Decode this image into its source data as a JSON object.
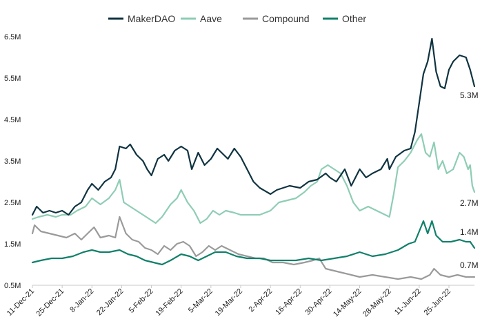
{
  "chart_data": {
    "type": "line",
    "title": "",
    "xlabel": "",
    "ylabel": "",
    "ylim": [
      0.5,
      6.5
    ],
    "y_ticks": [
      {
        "value": 0.5,
        "label": "0.5M"
      },
      {
        "value": 1.5,
        "label": "1.5M"
      },
      {
        "value": 2.5,
        "label": "2.5M"
      },
      {
        "value": 3.5,
        "label": "3.5M"
      },
      {
        "value": 4.5,
        "label": "4.5M"
      },
      {
        "value": 5.5,
        "label": "5.5M"
      },
      {
        "value": 6.5,
        "label": "6.5M"
      }
    ],
    "x_range": [
      "2021-12-11",
      "2022-07-07"
    ],
    "x_ticks": [
      {
        "date": "2021-12-11",
        "label": "11-Dec-21"
      },
      {
        "date": "2021-12-25",
        "label": "25-Dec-21"
      },
      {
        "date": "2022-01-08",
        "label": "8-Jan-22"
      },
      {
        "date": "2022-01-22",
        "label": "22-Jan-22"
      },
      {
        "date": "2022-02-05",
        "label": "5-Feb-22"
      },
      {
        "date": "2022-02-19",
        "label": "19-Feb-22"
      },
      {
        "date": "2022-03-05",
        "label": "5-Mar-22"
      },
      {
        "date": "2022-03-19",
        "label": "19-Mar-22"
      },
      {
        "date": "2022-04-02",
        "label": "2-Apr-22"
      },
      {
        "date": "2022-04-16",
        "label": "16-Apr-22"
      },
      {
        "date": "2022-04-30",
        "label": "30-Apr-22"
      },
      {
        "date": "2022-05-14",
        "label": "14-May-22"
      },
      {
        "date": "2022-05-28",
        "label": "28-May-22"
      },
      {
        "date": "2022-06-11",
        "label": "11-Jun-22"
      },
      {
        "date": "2022-06-25",
        "label": "25-Jun-22"
      }
    ],
    "grid": false,
    "legend_position": "top-center",
    "series": [
      {
        "name": "MakerDAO",
        "color": "#0f3340",
        "end_label": "5.3M",
        "points": [
          [
            "2021-12-11",
            2.2
          ],
          [
            "2021-12-13",
            2.4
          ],
          [
            "2021-12-16",
            2.25
          ],
          [
            "2021-12-19",
            2.3
          ],
          [
            "2021-12-22",
            2.25
          ],
          [
            "2021-12-25",
            2.3
          ],
          [
            "2021-12-28",
            2.2
          ],
          [
            "2021-12-31",
            2.4
          ],
          [
            "2022-01-03",
            2.5
          ],
          [
            "2022-01-06",
            2.8
          ],
          [
            "2022-01-08",
            2.95
          ],
          [
            "2022-01-11",
            2.8
          ],
          [
            "2022-01-14",
            3.0
          ],
          [
            "2022-01-17",
            3.1
          ],
          [
            "2022-01-19",
            3.3
          ],
          [
            "2022-01-21",
            3.85
          ],
          [
            "2022-01-24",
            3.8
          ],
          [
            "2022-01-26",
            3.9
          ],
          [
            "2022-01-29",
            3.65
          ],
          [
            "2022-02-01",
            3.5
          ],
          [
            "2022-02-03",
            3.3
          ],
          [
            "2022-02-05",
            3.15
          ],
          [
            "2022-02-08",
            3.55
          ],
          [
            "2022-02-11",
            3.65
          ],
          [
            "2022-02-13",
            3.5
          ],
          [
            "2022-02-16",
            3.75
          ],
          [
            "2022-02-19",
            3.85
          ],
          [
            "2022-02-22",
            3.75
          ],
          [
            "2022-02-24",
            3.3
          ],
          [
            "2022-02-27",
            3.7
          ],
          [
            "2022-03-02",
            3.4
          ],
          [
            "2022-03-05",
            3.55
          ],
          [
            "2022-03-08",
            3.8
          ],
          [
            "2022-03-10",
            3.7
          ],
          [
            "2022-03-13",
            3.55
          ],
          [
            "2022-03-16",
            3.8
          ],
          [
            "2022-03-19",
            3.6
          ],
          [
            "2022-03-22",
            3.3
          ],
          [
            "2022-03-25",
            3.0
          ],
          [
            "2022-03-28",
            2.85
          ],
          [
            "2022-04-02",
            2.7
          ],
          [
            "2022-04-05",
            2.8
          ],
          [
            "2022-04-08",
            2.85
          ],
          [
            "2022-04-11",
            2.9
          ],
          [
            "2022-04-16",
            2.85
          ],
          [
            "2022-04-20",
            3.0
          ],
          [
            "2022-04-24",
            3.05
          ],
          [
            "2022-04-28",
            3.2
          ],
          [
            "2022-04-30",
            3.1
          ],
          [
            "2022-05-03",
            3.0
          ],
          [
            "2022-05-07",
            3.3
          ],
          [
            "2022-05-10",
            2.9
          ],
          [
            "2022-05-14",
            3.3
          ],
          [
            "2022-05-17",
            3.1
          ],
          [
            "2022-05-20",
            3.2
          ],
          [
            "2022-05-24",
            3.3
          ],
          [
            "2022-05-27",
            3.55
          ],
          [
            "2022-05-28",
            3.3
          ],
          [
            "2022-05-31",
            3.6
          ],
          [
            "2022-06-04",
            3.75
          ],
          [
            "2022-06-07",
            3.8
          ],
          [
            "2022-06-09",
            4.2
          ],
          [
            "2022-06-11",
            4.9
          ],
          [
            "2022-06-13",
            5.6
          ],
          [
            "2022-06-15",
            5.9
          ],
          [
            "2022-06-17",
            6.45
          ],
          [
            "2022-06-19",
            5.65
          ],
          [
            "2022-06-21",
            5.3
          ],
          [
            "2022-06-23",
            5.25
          ],
          [
            "2022-06-25",
            5.7
          ],
          [
            "2022-06-27",
            5.9
          ],
          [
            "2022-06-30",
            6.05
          ],
          [
            "2022-07-03",
            6.0
          ],
          [
            "2022-07-05",
            5.7
          ],
          [
            "2022-07-07",
            5.3
          ]
        ]
      },
      {
        "name": "Aave",
        "color": "#8ecdb4",
        "end_label": "2.7M",
        "points": [
          [
            "2021-12-11",
            2.1
          ],
          [
            "2021-12-14",
            2.15
          ],
          [
            "2021-12-18",
            2.2
          ],
          [
            "2021-12-22",
            2.15
          ],
          [
            "2021-12-25",
            2.2
          ],
          [
            "2021-12-29",
            2.2
          ],
          [
            "2022-01-01",
            2.3
          ],
          [
            "2022-01-05",
            2.4
          ],
          [
            "2022-01-08",
            2.6
          ],
          [
            "2022-01-12",
            2.45
          ],
          [
            "2022-01-16",
            2.6
          ],
          [
            "2022-01-19",
            2.8
          ],
          [
            "2022-01-21",
            3.05
          ],
          [
            "2022-01-23",
            2.5
          ],
          [
            "2022-01-26",
            2.4
          ],
          [
            "2022-01-29",
            2.3
          ],
          [
            "2022-02-01",
            2.2
          ],
          [
            "2022-02-04",
            2.1
          ],
          [
            "2022-02-07",
            2.0
          ],
          [
            "2022-02-10",
            2.15
          ],
          [
            "2022-02-14",
            2.45
          ],
          [
            "2022-02-17",
            2.6
          ],
          [
            "2022-02-19",
            2.8
          ],
          [
            "2022-02-22",
            2.5
          ],
          [
            "2022-02-25",
            2.3
          ],
          [
            "2022-02-28",
            2.0
          ],
          [
            "2022-03-03",
            2.1
          ],
          [
            "2022-03-06",
            2.3
          ],
          [
            "2022-03-09",
            2.2
          ],
          [
            "2022-03-12",
            2.3
          ],
          [
            "2022-03-16",
            2.25
          ],
          [
            "2022-03-19",
            2.2
          ],
          [
            "2022-03-24",
            2.2
          ],
          [
            "2022-03-28",
            2.2
          ],
          [
            "2022-04-02",
            2.3
          ],
          [
            "2022-04-06",
            2.5
          ],
          [
            "2022-04-10",
            2.55
          ],
          [
            "2022-04-14",
            2.6
          ],
          [
            "2022-04-18",
            2.75
          ],
          [
            "2022-04-21",
            2.9
          ],
          [
            "2022-04-24",
            3.0
          ],
          [
            "2022-04-26",
            3.3
          ],
          [
            "2022-04-29",
            3.4
          ],
          [
            "2022-05-02",
            3.3
          ],
          [
            "2022-05-05",
            3.2
          ],
          [
            "2022-05-08",
            2.9
          ],
          [
            "2022-05-11",
            2.5
          ],
          [
            "2022-05-14",
            2.3
          ],
          [
            "2022-05-18",
            2.4
          ],
          [
            "2022-05-22",
            2.3
          ],
          [
            "2022-05-26",
            2.2
          ],
          [
            "2022-05-28",
            2.15
          ],
          [
            "2022-05-30",
            2.7
          ],
          [
            "2022-06-01",
            3.35
          ],
          [
            "2022-06-04",
            3.5
          ],
          [
            "2022-06-07",
            3.7
          ],
          [
            "2022-06-10",
            4.0
          ],
          [
            "2022-06-12",
            4.15
          ],
          [
            "2022-06-14",
            3.7
          ],
          [
            "2022-06-16",
            3.6
          ],
          [
            "2022-06-18",
            3.95
          ],
          [
            "2022-06-20",
            3.3
          ],
          [
            "2022-06-22",
            3.5
          ],
          [
            "2022-06-24",
            3.2
          ],
          [
            "2022-06-27",
            3.3
          ],
          [
            "2022-06-30",
            3.7
          ],
          [
            "2022-07-02",
            3.6
          ],
          [
            "2022-07-04",
            3.3
          ],
          [
            "2022-07-05",
            3.4
          ],
          [
            "2022-07-06",
            2.9
          ],
          [
            "2022-07-07",
            2.75
          ]
        ]
      },
      {
        "name": "Compound",
        "color": "#9a9a9a",
        "end_label": "0.7M",
        "points": [
          [
            "2021-12-11",
            1.75
          ],
          [
            "2021-12-12",
            1.95
          ],
          [
            "2021-12-15",
            1.8
          ],
          [
            "2021-12-19",
            1.75
          ],
          [
            "2021-12-23",
            1.7
          ],
          [
            "2021-12-27",
            1.65
          ],
          [
            "2021-12-31",
            1.75
          ],
          [
            "2022-01-03",
            1.6
          ],
          [
            "2022-01-06",
            1.75
          ],
          [
            "2022-01-09",
            1.9
          ],
          [
            "2022-01-12",
            1.65
          ],
          [
            "2022-01-16",
            1.7
          ],
          [
            "2022-01-19",
            1.65
          ],
          [
            "2022-01-21",
            2.15
          ],
          [
            "2022-01-24",
            1.75
          ],
          [
            "2022-01-27",
            1.6
          ],
          [
            "2022-01-30",
            1.55
          ],
          [
            "2022-02-02",
            1.4
          ],
          [
            "2022-02-05",
            1.35
          ],
          [
            "2022-02-08",
            1.25
          ],
          [
            "2022-02-11",
            1.45
          ],
          [
            "2022-02-14",
            1.35
          ],
          [
            "2022-02-17",
            1.5
          ],
          [
            "2022-02-20",
            1.55
          ],
          [
            "2022-02-23",
            1.45
          ],
          [
            "2022-02-26",
            1.2
          ],
          [
            "2022-03-01",
            1.3
          ],
          [
            "2022-03-04",
            1.45
          ],
          [
            "2022-03-07",
            1.35
          ],
          [
            "2022-03-10",
            1.45
          ],
          [
            "2022-03-14",
            1.35
          ],
          [
            "2022-03-18",
            1.25
          ],
          [
            "2022-03-22",
            1.2
          ],
          [
            "2022-03-26",
            1.15
          ],
          [
            "2022-03-30",
            1.15
          ],
          [
            "2022-04-03",
            1.05
          ],
          [
            "2022-04-08",
            1.05
          ],
          [
            "2022-04-13",
            1.0
          ],
          [
            "2022-04-18",
            1.05
          ],
          [
            "2022-04-22",
            1.1
          ],
          [
            "2022-04-25",
            1.15
          ],
          [
            "2022-04-28",
            0.9
          ],
          [
            "2022-05-02",
            0.85
          ],
          [
            "2022-05-06",
            0.8
          ],
          [
            "2022-05-10",
            0.75
          ],
          [
            "2022-05-14",
            0.7
          ],
          [
            "2022-05-20",
            0.75
          ],
          [
            "2022-05-26",
            0.7
          ],
          [
            "2022-06-01",
            0.65
          ],
          [
            "2022-06-07",
            0.7
          ],
          [
            "2022-06-12",
            0.65
          ],
          [
            "2022-06-16",
            0.75
          ],
          [
            "2022-06-18",
            0.9
          ],
          [
            "2022-06-21",
            0.75
          ],
          [
            "2022-06-25",
            0.7
          ],
          [
            "2022-06-29",
            0.75
          ],
          [
            "2022-07-03",
            0.7
          ],
          [
            "2022-07-07",
            0.7
          ]
        ]
      },
      {
        "name": "Other",
        "color": "#11806a",
        "end_label": "1.4M",
        "points": [
          [
            "2021-12-11",
            1.05
          ],
          [
            "2021-12-15",
            1.1
          ],
          [
            "2021-12-20",
            1.15
          ],
          [
            "2021-12-25",
            1.15
          ],
          [
            "2021-12-30",
            1.2
          ],
          [
            "2022-01-04",
            1.3
          ],
          [
            "2022-01-08",
            1.35
          ],
          [
            "2022-01-12",
            1.3
          ],
          [
            "2022-01-16",
            1.3
          ],
          [
            "2022-01-21",
            1.35
          ],
          [
            "2022-01-25",
            1.25
          ],
          [
            "2022-01-29",
            1.2
          ],
          [
            "2022-02-02",
            1.1
          ],
          [
            "2022-02-06",
            1.05
          ],
          [
            "2022-02-10",
            1.0
          ],
          [
            "2022-02-14",
            1.1
          ],
          [
            "2022-02-19",
            1.25
          ],
          [
            "2022-02-23",
            1.2
          ],
          [
            "2022-02-27",
            1.1
          ],
          [
            "2022-03-03",
            1.2
          ],
          [
            "2022-03-07",
            1.3
          ],
          [
            "2022-03-12",
            1.3
          ],
          [
            "2022-03-17",
            1.2
          ],
          [
            "2022-03-22",
            1.15
          ],
          [
            "2022-03-28",
            1.15
          ],
          [
            "2022-04-02",
            1.1
          ],
          [
            "2022-04-08",
            1.1
          ],
          [
            "2022-04-14",
            1.1
          ],
          [
            "2022-04-20",
            1.15
          ],
          [
            "2022-04-26",
            1.1
          ],
          [
            "2022-05-02",
            1.15
          ],
          [
            "2022-05-08",
            1.2
          ],
          [
            "2022-05-14",
            1.3
          ],
          [
            "2022-05-20",
            1.2
          ],
          [
            "2022-05-26",
            1.25
          ],
          [
            "2022-06-01",
            1.35
          ],
          [
            "2022-06-06",
            1.5
          ],
          [
            "2022-06-09",
            1.55
          ],
          [
            "2022-06-11",
            1.8
          ],
          [
            "2022-06-13",
            2.05
          ],
          [
            "2022-06-15",
            1.75
          ],
          [
            "2022-06-17",
            2.05
          ],
          [
            "2022-06-19",
            1.7
          ],
          [
            "2022-06-22",
            1.55
          ],
          [
            "2022-06-26",
            1.55
          ],
          [
            "2022-06-30",
            1.6
          ],
          [
            "2022-07-03",
            1.55
          ],
          [
            "2022-07-05",
            1.55
          ],
          [
            "2022-07-07",
            1.4
          ]
        ]
      }
    ]
  }
}
